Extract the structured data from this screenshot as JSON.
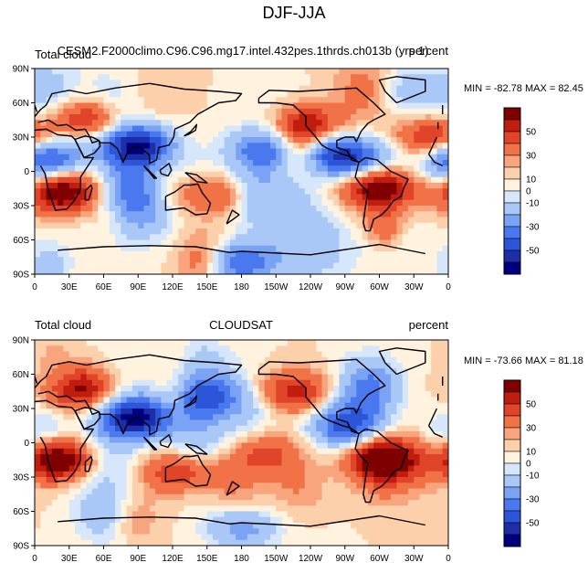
{
  "figure_title": "DJF-JJA",
  "chart_data": [
    {
      "type": "heatmap",
      "variable": "Total cloud",
      "source": "CESM2.F2000climo.C96.C96.mg17.intel.432pes.1thrds.ch013b (yrs 1)",
      "units": "percent",
      "min_max_text": "MIN = -82.78 MAX =  82.45",
      "min": -82.78,
      "max": 82.45,
      "xlim": [
        0,
        360
      ],
      "ylim": [
        -90,
        90
      ],
      "x_ticks": [
        "0",
        "30E",
        "60E",
        "90E",
        "120E",
        "150E",
        "180",
        "150W",
        "120W",
        "90W",
        "60W",
        "30W",
        "0"
      ],
      "y_ticks": [
        "90N",
        "60N",
        "30N",
        "0",
        "30S",
        "60S",
        "90S"
      ],
      "colorbar_labels": [
        "50",
        "30",
        "10",
        "0",
        "-10",
        "-30",
        "-50"
      ],
      "colorbar_levels": [
        -60,
        -50,
        -40,
        -30,
        -20,
        -10,
        -5,
        0,
        5,
        10,
        20,
        30,
        40,
        50,
        60
      ],
      "coastlines": true,
      "regions": [
        {
          "lon": 25,
          "lat": -18,
          "value": 55
        },
        {
          "lon": 300,
          "lat": -15,
          "value": 55
        },
        {
          "lon": 45,
          "lat": 45,
          "value": 45
        },
        {
          "lon": 235,
          "lat": 40,
          "value": 45
        },
        {
          "lon": 345,
          "lat": 30,
          "value": 40
        },
        {
          "lon": 90,
          "lat": 22,
          "value": -60
        },
        {
          "lon": 275,
          "lat": 12,
          "value": -50
        },
        {
          "lon": 10,
          "lat": 10,
          "value": -45
        },
        {
          "lon": 150,
          "lat": -20,
          "value": 35
        },
        {
          "lon": 200,
          "lat": 20,
          "value": -35
        },
        {
          "lon": 180,
          "lat": -80,
          "value": -40
        }
      ]
    },
    {
      "type": "heatmap",
      "variable": "Total cloud",
      "source": "CLOUDSAT",
      "units": "percent",
      "min_max_text": "MIN = -73.66 MAX =  81.18",
      "min": -73.66,
      "max": 81.18,
      "xlim": [
        0,
        360
      ],
      "ylim": [
        -90,
        90
      ],
      "x_ticks": [
        "0",
        "30E",
        "60E",
        "90E",
        "120E",
        "150E",
        "180",
        "150W",
        "120W",
        "90W",
        "60W",
        "30W",
        "0"
      ],
      "y_ticks": [
        "90N",
        "60N",
        "30N",
        "0",
        "30S",
        "60S",
        "90S"
      ],
      "colorbar_labels": [
        "50",
        "30",
        "10",
        "0",
        "-10",
        "-30",
        "-50"
      ],
      "colorbar_levels": [
        -60,
        -50,
        -40,
        -30,
        -20,
        -10,
        -5,
        0,
        5,
        10,
        20,
        30,
        40,
        50,
        60
      ],
      "coastlines": true,
      "regions": [
        {
          "lon": 20,
          "lat": -15,
          "value": 60
        },
        {
          "lon": 305,
          "lat": -15,
          "value": 60
        },
        {
          "lon": 40,
          "lat": 45,
          "value": 40
        },
        {
          "lon": 225,
          "lat": 45,
          "value": 35
        },
        {
          "lon": 90,
          "lat": 22,
          "value": -60
        },
        {
          "lon": 270,
          "lat": 15,
          "value": -40
        },
        {
          "lon": 130,
          "lat": -25,
          "value": 35
        },
        {
          "lon": 200,
          "lat": -10,
          "value": 25
        },
        {
          "lon": 150,
          "lat": 40,
          "value": -30
        },
        {
          "lon": 180,
          "lat": -75,
          "value": -25
        }
      ]
    }
  ],
  "colors": {
    "palette": [
      "#00007f",
      "#1c2ea8",
      "#2c55d8",
      "#4a78ef",
      "#7ba3f5",
      "#a9c7f7",
      "#d6e6fb",
      "#fff3df",
      "#fdd0ac",
      "#f8a47c",
      "#f07246",
      "#e0452a",
      "#c01d0e",
      "#7f0000"
    ],
    "land_line": "#000000",
    "frame": "#000000"
  }
}
